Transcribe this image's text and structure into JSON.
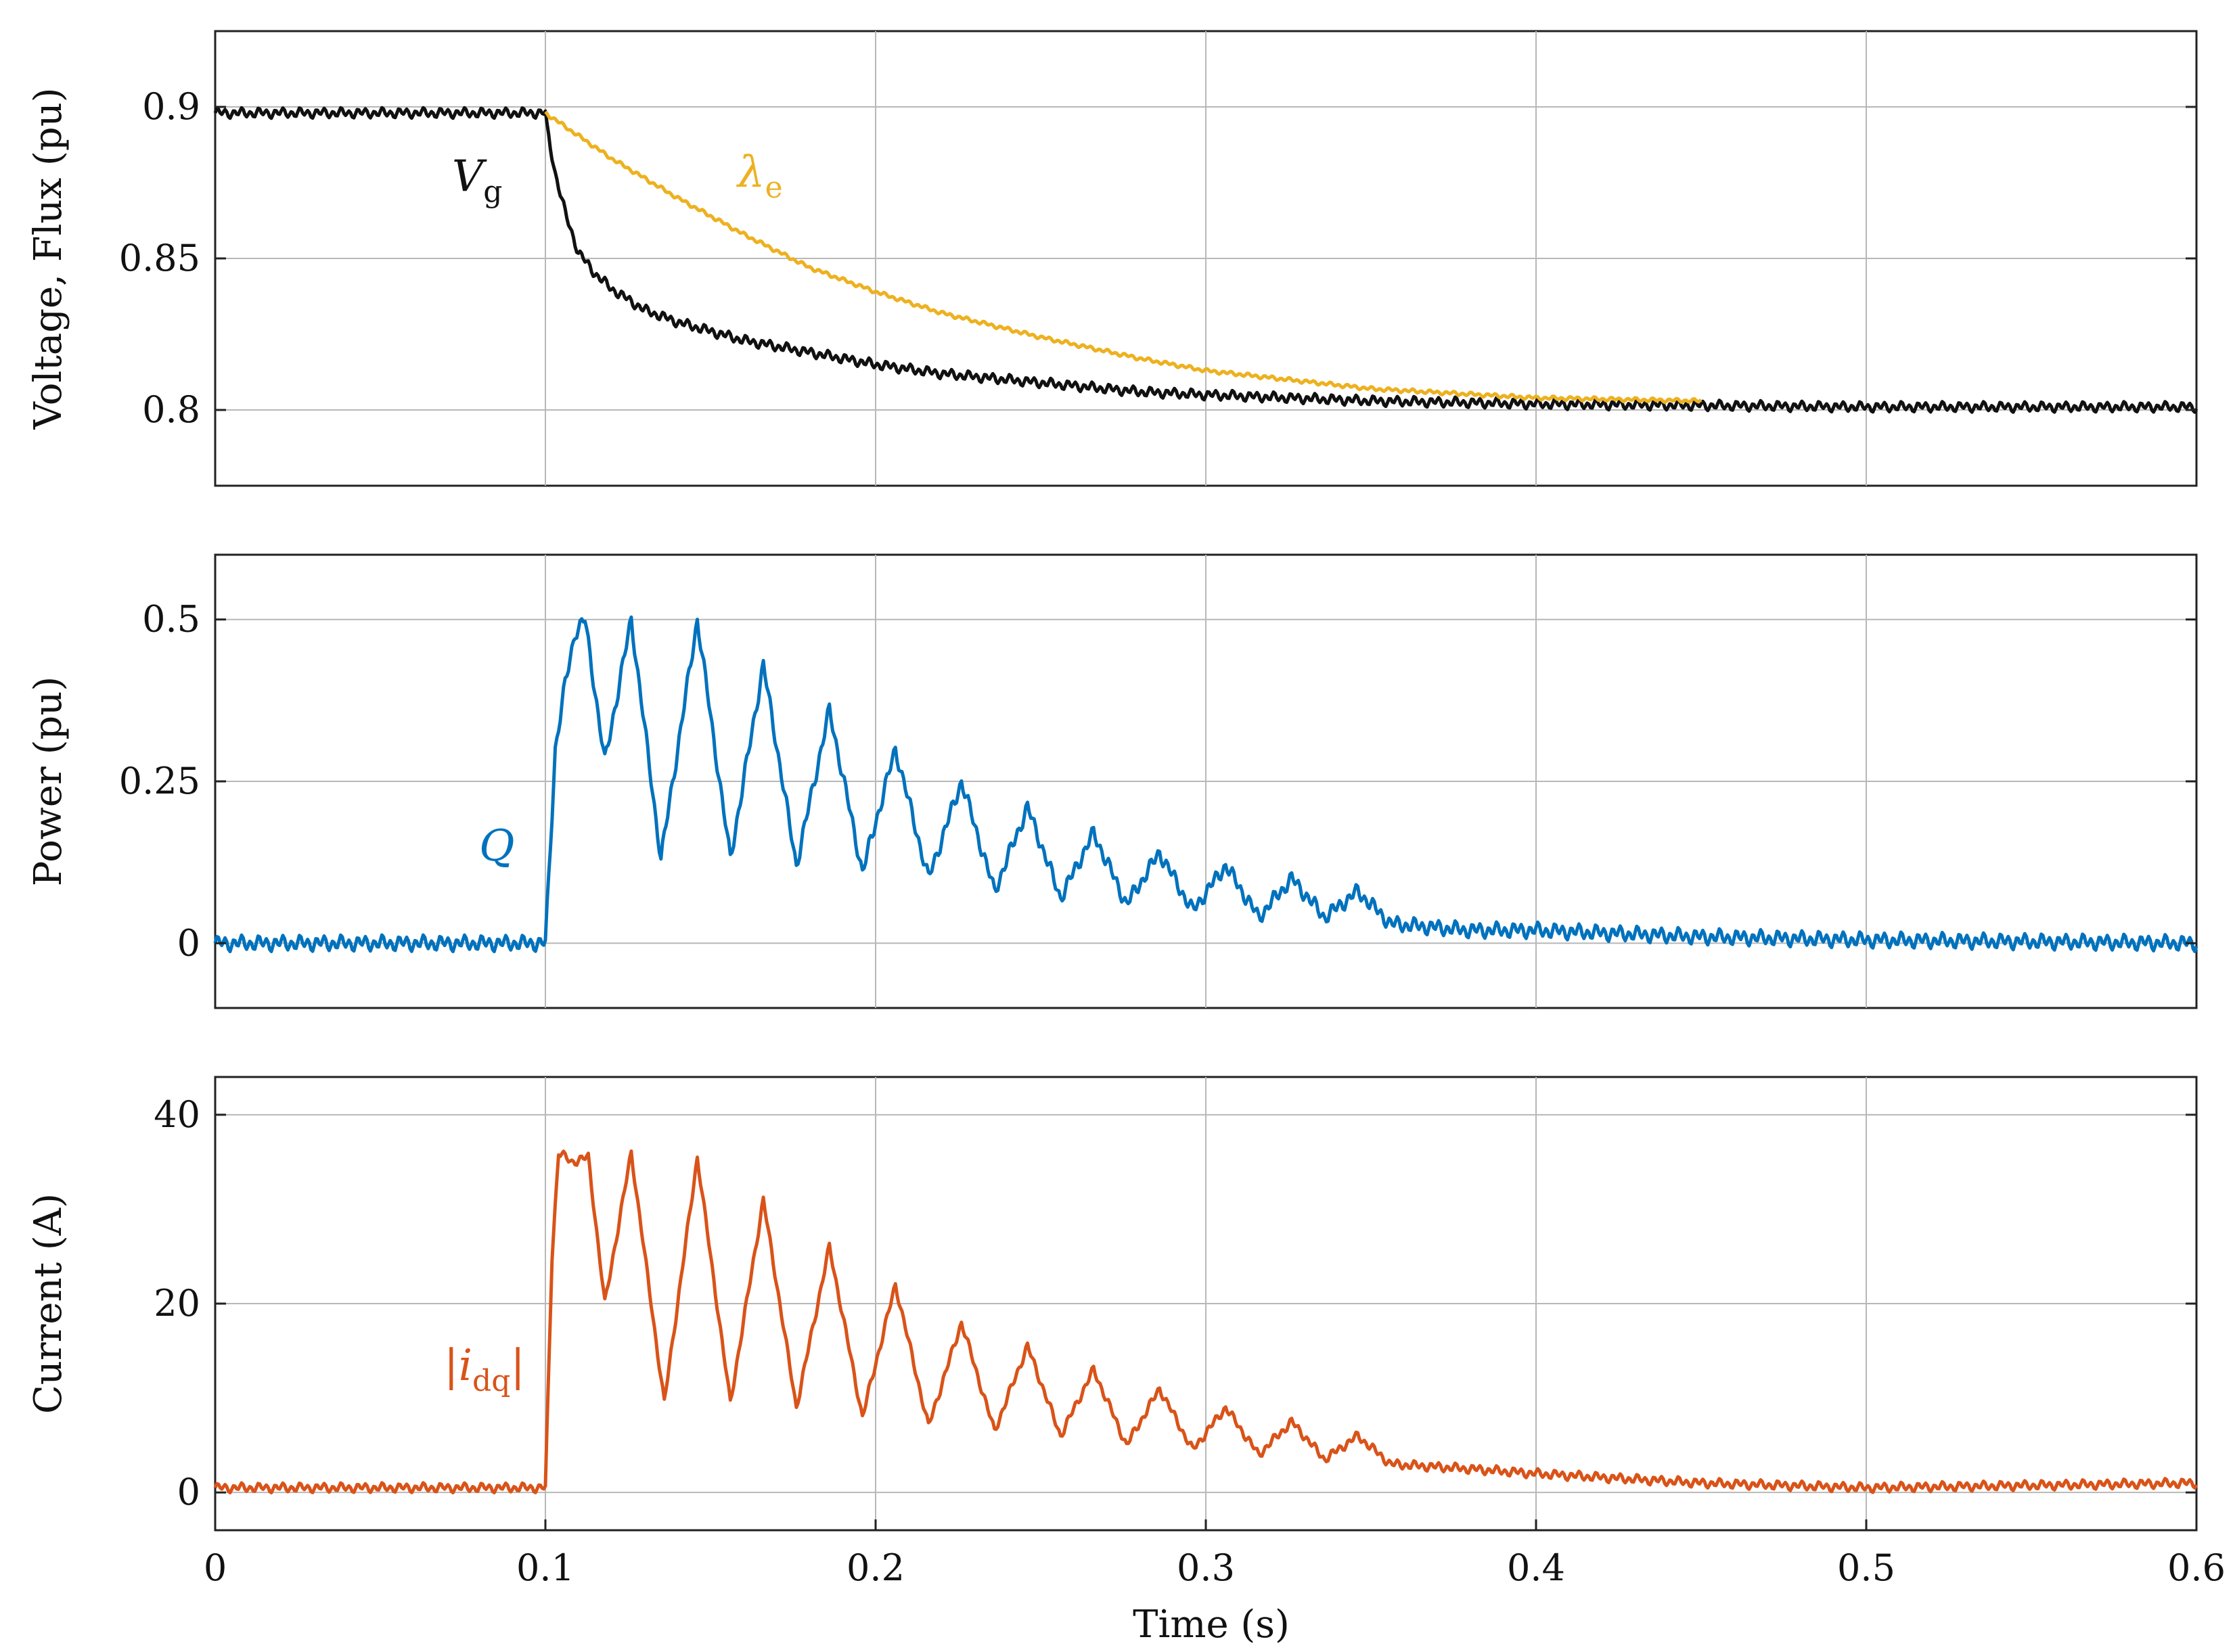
{
  "chart_data": [
    {
      "type": "line",
      "panel": "top",
      "ylabel": "Voltage, Flux (pu)",
      "ylim": [
        0.775,
        0.925
      ],
      "yticks": [
        0.8,
        0.85,
        0.9
      ],
      "ytick_labels": [
        "0.8",
        "0.85",
        "0.9"
      ],
      "xlim": [
        0,
        0.6
      ],
      "grid": true,
      "series": [
        {
          "name": "V_g",
          "label_main": "V",
          "label_sub": "g",
          "color": "#111111",
          "x": [
            0,
            0.1,
            0.1005,
            0.103,
            0.106,
            0.11,
            0.115,
            0.12,
            0.13,
            0.14,
            0.15,
            0.16,
            0.17,
            0.18,
            0.2,
            0.22,
            0.25,
            0.28,
            0.3,
            0.35,
            0.4,
            0.5,
            0.6
          ],
          "values": [
            0.898,
            0.898,
            0.893,
            0.878,
            0.865,
            0.852,
            0.845,
            0.84,
            0.833,
            0.829,
            0.826,
            0.823,
            0.821,
            0.819,
            0.815,
            0.812,
            0.809,
            0.806,
            0.805,
            0.803,
            0.802,
            0.801,
            0.801
          ],
          "ripple": 0.0015
        },
        {
          "name": "lambda_e",
          "label_main": "λ",
          "label_sub": "e",
          "color": "#EDB120",
          "x": [
            0.1,
            0.12,
            0.14,
            0.16,
            0.18,
            0.2,
            0.22,
            0.25,
            0.28,
            0.3,
            0.35,
            0.4,
            0.45
          ],
          "values": [
            0.898,
            0.883,
            0.87,
            0.858,
            0.847,
            0.839,
            0.832,
            0.824,
            0.817,
            0.813,
            0.807,
            0.804,
            0.803
          ],
          "ripple": 0.0006
        }
      ]
    },
    {
      "type": "line",
      "panel": "middle",
      "ylabel": "Power (pu)",
      "ylim": [
        -0.1,
        0.6
      ],
      "yticks": [
        0,
        0.25,
        0.5
      ],
      "ytick_labels": [
        "0",
        "0.25",
        "0.5"
      ],
      "xlim": [
        0,
        0.6
      ],
      "grid": true,
      "series": [
        {
          "name": "Q",
          "label_main": "Q",
          "label_sub": "",
          "color": "#0072BD",
          "x": [
            0,
            0.1,
            0.103,
            0.106,
            0.109,
            0.112,
            0.118,
            0.126,
            0.135,
            0.146,
            0.156,
            0.166,
            0.176,
            0.186,
            0.196,
            0.206,
            0.216,
            0.226,
            0.236,
            0.246,
            0.256,
            0.266,
            0.276,
            0.286,
            0.296,
            0.306,
            0.316,
            0.326,
            0.336,
            0.346,
            0.356,
            0.38,
            0.4,
            0.45,
            0.5,
            0.6
          ],
          "values": [
            0.0,
            0.0,
            0.3,
            0.4,
            0.48,
            0.5,
            0.28,
            0.5,
            0.13,
            0.5,
            0.13,
            0.43,
            0.12,
            0.36,
            0.11,
            0.3,
            0.1,
            0.25,
            0.08,
            0.21,
            0.07,
            0.17,
            0.06,
            0.14,
            0.05,
            0.12,
            0.04,
            0.1,
            0.04,
            0.08,
            0.03,
            0.02,
            0.02,
            0.01,
            0.005,
            0.0
          ],
          "ripple": 0.011
        }
      ]
    },
    {
      "type": "line",
      "panel": "bottom",
      "ylabel": "Current (A)",
      "xlabel": "Time (s)",
      "ylim": [
        -4,
        44
      ],
      "yticks": [
        0,
        20,
        40
      ],
      "ytick_labels": [
        "0",
        "20",
        "40"
      ],
      "xlim": [
        0,
        0.6
      ],
      "xticks": [
        0,
        0.1,
        0.2,
        0.3,
        0.4,
        0.5,
        0.6
      ],
      "xtick_labels": [
        "0",
        "0.1",
        "0.2",
        "0.3",
        "0.4",
        "0.5",
        "0.6"
      ],
      "grid": true,
      "series": [
        {
          "name": "|i_dq|",
          "label_main": "|i",
          "label_sub": "dq",
          "label_end": "|",
          "color": "#D95319",
          "x": [
            0,
            0.1,
            0.102,
            0.104,
            0.108,
            0.113,
            0.118,
            0.126,
            0.136,
            0.146,
            0.156,
            0.166,
            0.176,
            0.186,
            0.196,
            0.206,
            0.216,
            0.226,
            0.236,
            0.246,
            0.256,
            0.266,
            0.276,
            0.286,
            0.296,
            0.306,
            0.316,
            0.326,
            0.336,
            0.346,
            0.356,
            0.38,
            0.4,
            0.45,
            0.5,
            0.6
          ],
          "values": [
            0.5,
            0.5,
            25,
            36,
            35,
            35.5,
            20,
            36,
            9.5,
            35.5,
            9.5,
            31,
            9,
            26,
            8,
            22,
            7,
            18,
            6.5,
            15.5,
            6,
            13,
            5,
            11,
            4.5,
            9,
            4,
            7.5,
            3.5,
            6,
            3,
            2.5,
            2,
            1,
            0.5,
            1
          ],
          "ripple": 0.45
        }
      ]
    }
  ]
}
